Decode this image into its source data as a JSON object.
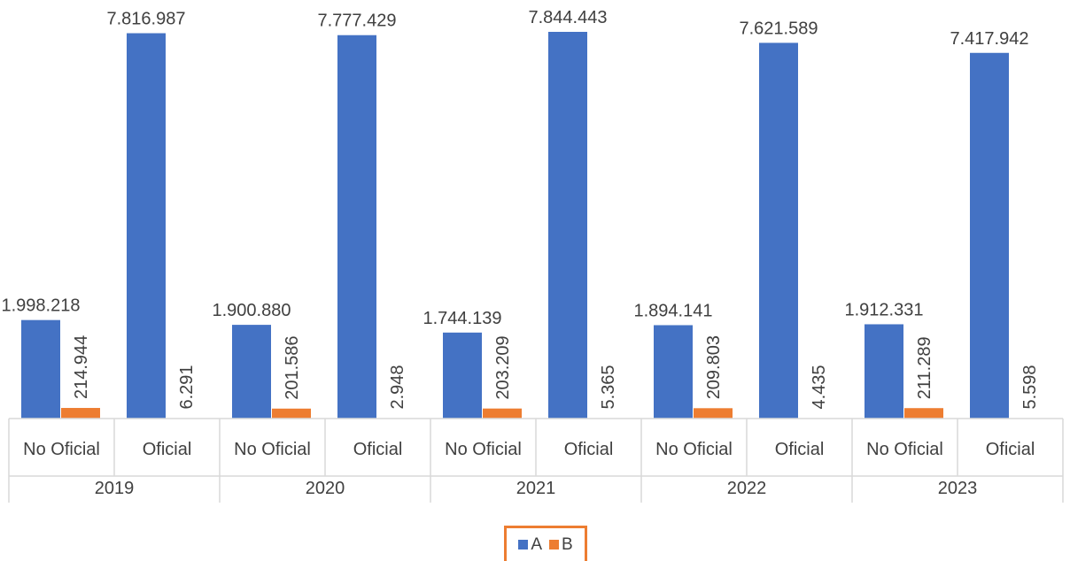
{
  "chart_data": {
    "type": "bar",
    "title": "",
    "xlabel": "",
    "ylabel": "",
    "ylim": [
      0,
      8000000
    ],
    "grid": false,
    "legend_position": "bottom",
    "groups": [
      {
        "year": "2019",
        "categories": [
          "No Oficial",
          "Oficial"
        ]
      },
      {
        "year": "2020",
        "categories": [
          "No Oficial",
          "Oficial"
        ]
      },
      {
        "year": "2021",
        "categories": [
          "No Oficial",
          "Oficial"
        ]
      },
      {
        "year": "2022",
        "categories": [
          "No Oficial",
          "Oficial"
        ]
      },
      {
        "year": "2023",
        "categories": [
          "No Oficial",
          "Oficial"
        ]
      }
    ],
    "series": [
      {
        "name": "A",
        "color": "#4472c4",
        "values": [
          1998218,
          7816987,
          1900880,
          7777429,
          1744139,
          7844443,
          1894141,
          7621589,
          1912331,
          7417942
        ],
        "labels": [
          "1.998.218",
          "7.816.987",
          "1.900.880",
          "7.777.429",
          "1.744.139",
          "7.844.443",
          "1.894.141",
          "7.621.589",
          "1.912.331",
          "7.417.942"
        ]
      },
      {
        "name": "B",
        "color": "#ed7d31",
        "values": [
          214944,
          6291,
          201586,
          2948,
          203209,
          5365,
          209803,
          4435,
          211289,
          5598
        ],
        "labels": [
          "214.944",
          "6.291",
          "201.586",
          "2.948",
          "203.209",
          "5.365",
          "209.803",
          "4.435",
          "211.289",
          "5.598"
        ]
      }
    ]
  }
}
